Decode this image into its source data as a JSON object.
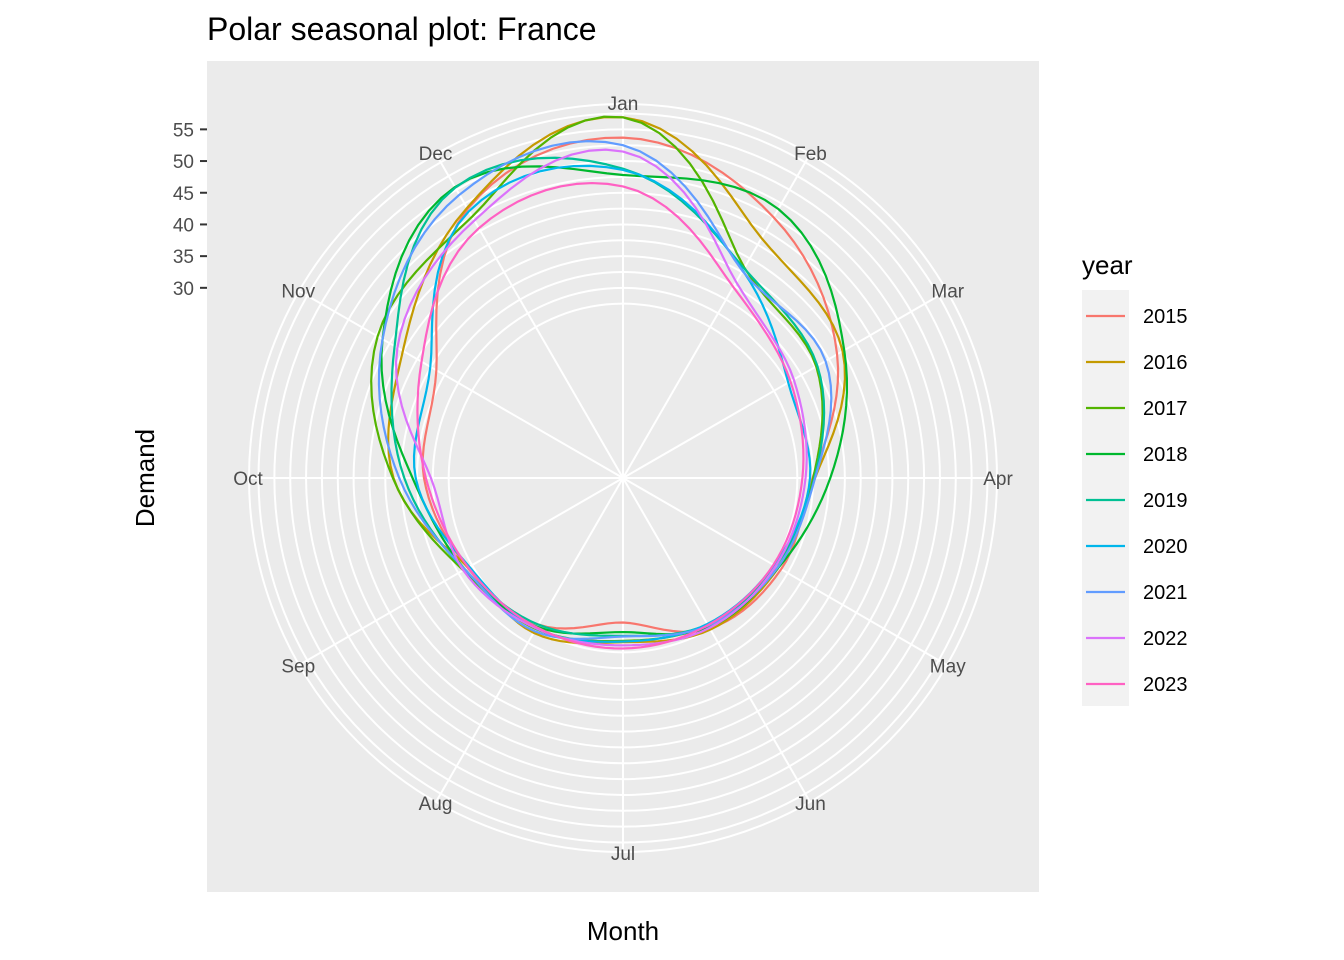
{
  "chart_data": {
    "type": "line",
    "coord": "polar",
    "title": "Polar seasonal plot: France",
    "xlabel": "Month",
    "ylabel": "Demand",
    "legend_title": "year",
    "legend_position": "right",
    "grid": true,
    "months": [
      "Jan",
      "Feb",
      "Mar",
      "Apr",
      "May",
      "Jun",
      "Jul",
      "Aug",
      "Sep",
      "Oct",
      "Nov",
      "Dec"
    ],
    "r_ticks": [
      30,
      35,
      40,
      45,
      50,
      55
    ],
    "rlim": [
      0,
      59
    ],
    "series": [
      {
        "name": "2015",
        "color": "#F8766D",
        "values": [
          53.7,
          47.5,
          39.0,
          29.9,
          28.8,
          27.4,
          22.8,
          26.7,
          28.3,
          31.4,
          34.0,
          49.0
        ]
      },
      {
        "name": "2016",
        "color": "#C49A00",
        "values": [
          56.9,
          43.7,
          40.0,
          30.3,
          28.3,
          27.6,
          25.9,
          28.2,
          28.2,
          36.2,
          40.1,
          49.2
        ]
      },
      {
        "name": "2017",
        "color": "#53B400",
        "values": [
          56.9,
          38.3,
          35.2,
          30.0,
          28.2,
          26.8,
          25.7,
          27.5,
          29.1,
          36.3,
          44.7,
          47.6
        ]
      },
      {
        "name": "2018",
        "color": "#00B82E",
        "values": [
          47.8,
          49.0,
          40.3,
          32.7,
          28.3,
          27.2,
          24.3,
          27.1,
          28.8,
          33.2,
          43.8,
          53.0
        ]
      },
      {
        "name": "2019",
        "color": "#00C094",
        "values": [
          48.8,
          38.2,
          35.4,
          30.2,
          27.8,
          26.7,
          24.9,
          26.7,
          28.9,
          34.5,
          41.6,
          52.9
        ]
      },
      {
        "name": "2020",
        "color": "#00B6EB",
        "values": [
          48.6,
          37.8,
          30.1,
          29.5,
          27.5,
          26.6,
          25.8,
          27.4,
          28.0,
          32.7,
          35.1,
          48.6
        ]
      },
      {
        "name": "2021",
        "color": "#619CFF",
        "values": [
          52.5,
          37.7,
          36.9,
          30.3,
          28.2,
          26.9,
          25.0,
          27.9,
          28.8,
          35.3,
          43.8,
          51.6
        ]
      },
      {
        "name": "2022",
        "color": "#DB72FB",
        "values": [
          51.5,
          35.7,
          31.1,
          28.8,
          27.8,
          27.3,
          26.4,
          27.4,
          29.1,
          30.3,
          41.1,
          46.9
        ]
      },
      {
        "name": "2023",
        "color": "#FF61C3",
        "values": [
          46.0,
          34.8,
          30.5,
          28.3,
          27.4,
          26.8,
          26.9,
          27.2,
          28.2,
          31.1,
          36.7,
          45.5
        ]
      }
    ]
  }
}
